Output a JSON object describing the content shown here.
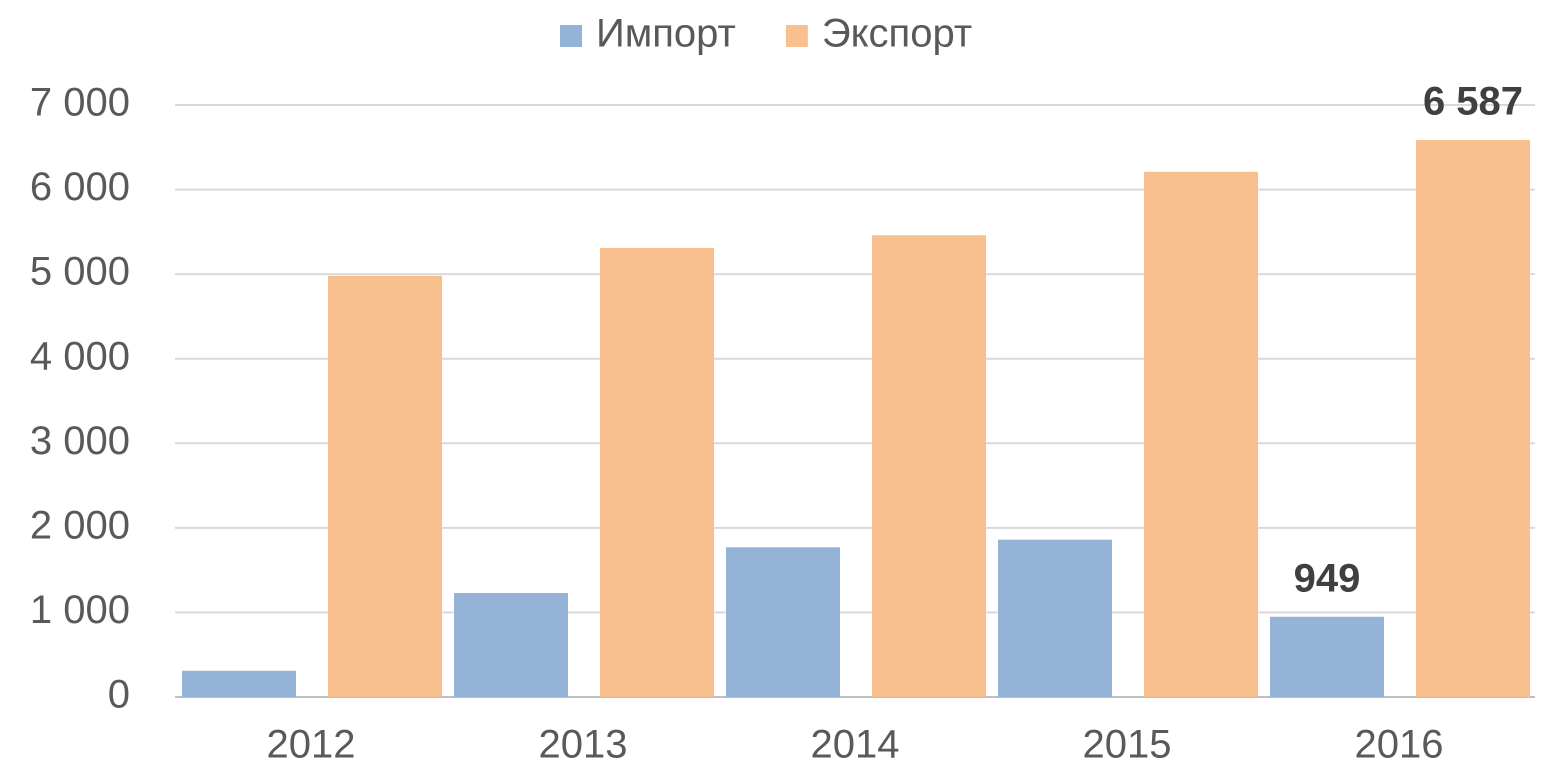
{
  "chart_data": {
    "type": "bar",
    "categories": [
      "2012",
      "2013",
      "2014",
      "2015",
      "2016"
    ],
    "series": [
      {
        "name": "Импорт",
        "color": "#95b3d7",
        "values": [
          310,
          1230,
          1770,
          1860,
          949
        ],
        "value_labels": [
          null,
          null,
          null,
          null,
          "949"
        ]
      },
      {
        "name": "Экспорт",
        "color": "#f9c08f",
        "values": [
          4980,
          5310,
          5460,
          6210,
          6587
        ],
        "value_labels": [
          null,
          null,
          null,
          null,
          "6 587"
        ]
      }
    ],
    "ylim": [
      0,
      7000
    ],
    "yticks": [
      0,
      {
        "value": 1000,
        "label": "1 000"
      },
      {
        "value": 2000,
        "label": "2 000"
      },
      {
        "value": 3000,
        "label": "3 000"
      },
      {
        "value": 4000,
        "label": "4 000"
      },
      {
        "value": 5000,
        "label": "5 000"
      },
      {
        "value": 6000,
        "label": "6 000"
      },
      {
        "value": 7000,
        "label": "7 000"
      }
    ],
    "grid": true,
    "legend": "top"
  }
}
